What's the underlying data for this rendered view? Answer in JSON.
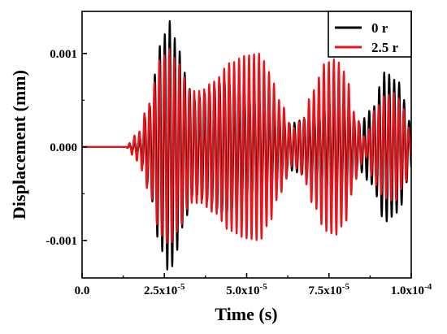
{
  "chart_data": {
    "type": "line",
    "xlabel": "Time (s)",
    "ylabel": "Displacement (mm)",
    "xlim": [
      0,
      0.0001
    ],
    "ylim": [
      -0.0014,
      0.00145
    ],
    "x_ticks": [
      {
        "value": 0,
        "label": "0.0"
      },
      {
        "value": 2.5e-05,
        "label": "2.5x10",
        "exp": "-5"
      },
      {
        "value": 5e-05,
        "label": "5.0x10",
        "exp": "-5"
      },
      {
        "value": 7.5e-05,
        "label": "7.5x10",
        "exp": "-5"
      },
      {
        "value": 0.0001,
        "label": "1.0x10",
        "exp": "-4"
      }
    ],
    "y_ticks": [
      {
        "value": 0.001,
        "label": "0.001"
      },
      {
        "value": 0.0,
        "label": "0.000"
      },
      {
        "value": -0.001,
        "label": "-0.001"
      }
    ],
    "legend_position": "top-right",
    "grid": false,
    "series": [
      {
        "name": "0 r",
        "color": "#000000",
        "carrier_frequency_hz": 660000,
        "onset_time": 1.3e-05,
        "envelope_points": [
          [
            1.3e-05,
            0.0
          ],
          [
            1.7e-05,
            5e-05
          ],
          [
            2e-05,
            0.0004
          ],
          [
            2.4e-05,
            0.0011
          ],
          [
            2.65e-05,
            0.00135
          ],
          [
            2.9e-05,
            0.0011
          ],
          [
            3.1e-05,
            0.0008
          ],
          [
            3.4e-05,
            0.0005
          ],
          [
            3.8e-05,
            0.00058
          ],
          [
            4.3e-05,
            0.0007
          ],
          [
            4.8e-05,
            0.0006
          ],
          [
            5.3e-05,
            0.0005
          ],
          [
            5.8e-05,
            0.0004
          ],
          [
            6.3e-05,
            0.00025
          ],
          [
            6.8e-05,
            0.0003
          ],
          [
            7.2e-05,
            0.00035
          ],
          [
            7.6e-05,
            0.0005
          ],
          [
            8e-05,
            0.00045
          ],
          [
            8.4e-05,
            0.00025
          ],
          [
            8.8e-05,
            0.0004
          ],
          [
            9.2e-05,
            0.0008
          ],
          [
            9.6e-05,
            0.0007
          ],
          [
            0.0001,
            0.00025
          ]
        ]
      },
      {
        "name": "2.5 r",
        "color": "#e8141b",
        "carrier_frequency_hz": 660000,
        "onset_time": 1.3e-05,
        "envelope_points": [
          [
            1.3e-05,
            0.0
          ],
          [
            1.7e-05,
            0.00015
          ],
          [
            2e-05,
            0.00045
          ],
          [
            2.4e-05,
            0.00095
          ],
          [
            2.65e-05,
            0.00105
          ],
          [
            2.9e-05,
            0.0009
          ],
          [
            3.3e-05,
            0.0006
          ],
          [
            3.6e-05,
            0.0006
          ],
          [
            4e-05,
            0.0007
          ],
          [
            4.5e-05,
            0.0009
          ],
          [
            5e-05,
            0.00098
          ],
          [
            5.4e-05,
            0.001
          ],
          [
            5.7e-05,
            0.0008
          ],
          [
            6e-05,
            0.0005
          ],
          [
            6.4e-05,
            0.0002
          ],
          [
            6.7e-05,
            0.0003
          ],
          [
            7e-05,
            0.0006
          ],
          [
            7.4e-05,
            0.0009
          ],
          [
            7.7e-05,
            0.00094
          ],
          [
            8e-05,
            0.0008
          ],
          [
            8.3e-05,
            0.00035
          ],
          [
            8.6e-05,
            0.0001
          ],
          [
            8.9e-05,
            0.0004
          ],
          [
            9.2e-05,
            0.00055
          ],
          [
            9.5e-05,
            0.00058
          ],
          [
            9.8e-05,
            0.0004
          ],
          [
            0.0001,
            0.0001
          ]
        ]
      }
    ]
  }
}
